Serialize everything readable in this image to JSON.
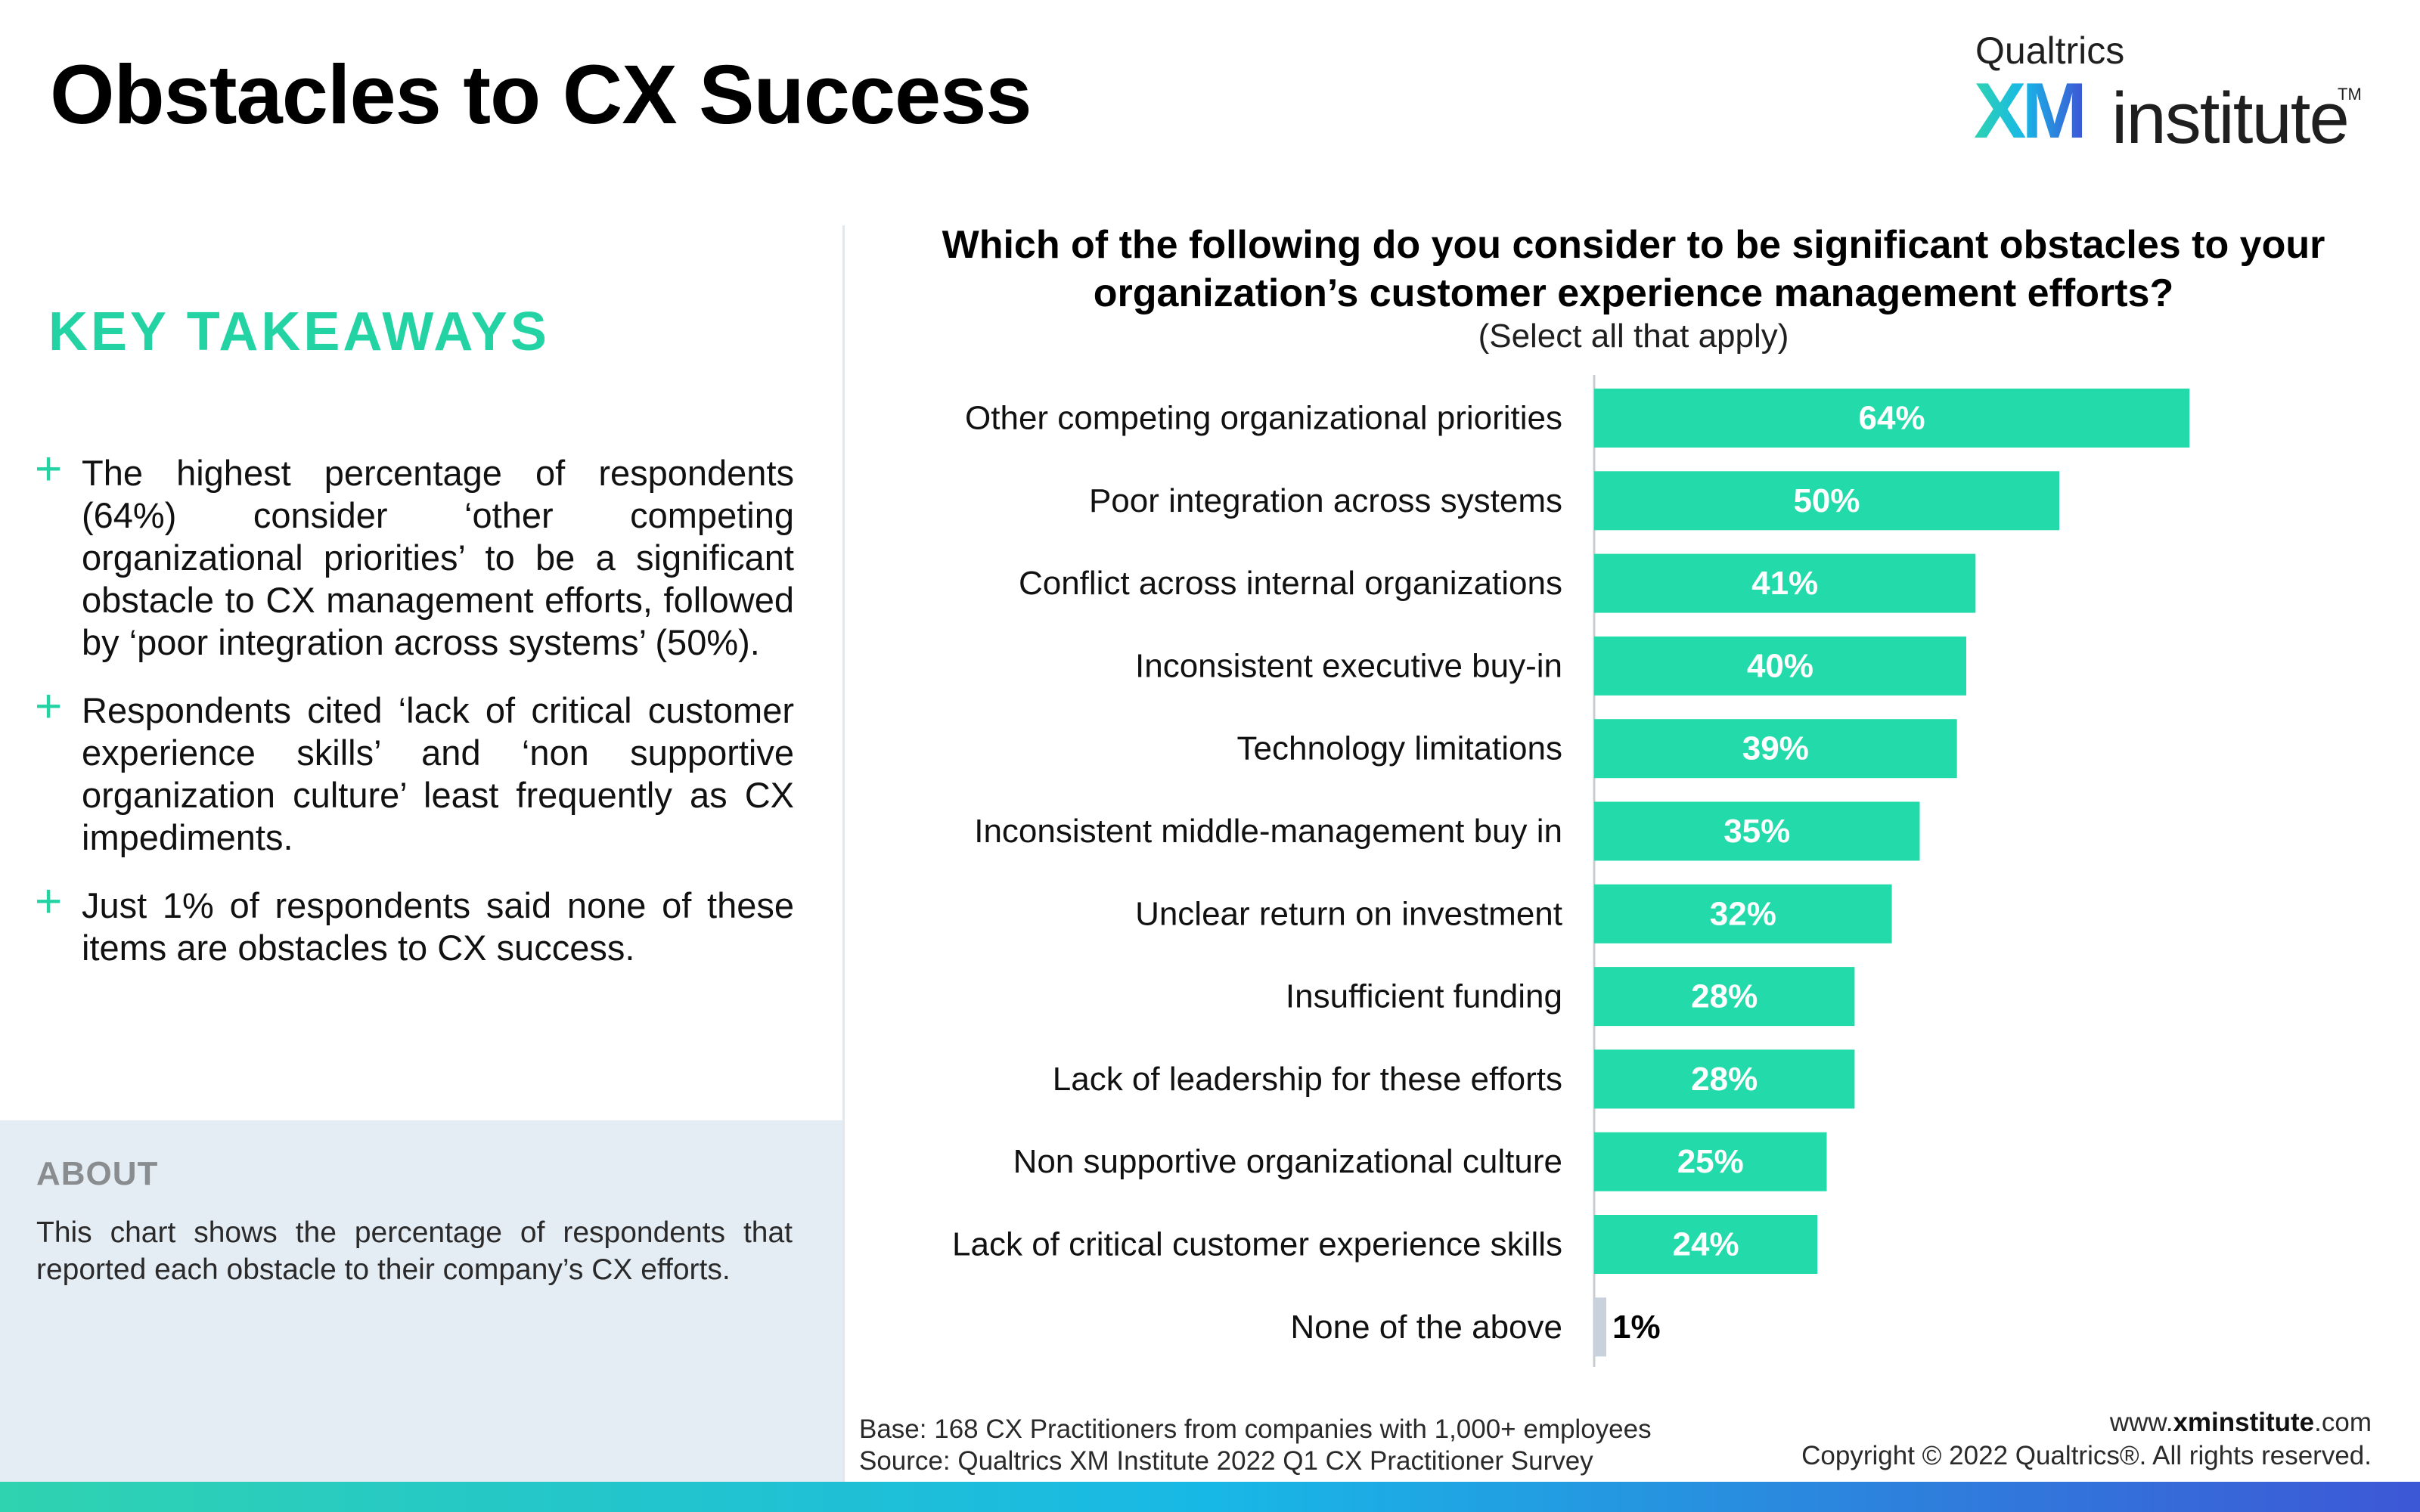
{
  "header": {
    "title": "Obstacles to CX Success",
    "logo": {
      "top_text": "Qualtrics",
      "mark": "XM",
      "word": "institute",
      "tm": "TM",
      "gradient": [
        "#2fd3b0",
        "#18b8e6",
        "#3d57d6"
      ]
    }
  },
  "takeaways": {
    "heading": "KEY TAKEAWAYS",
    "plus": "+",
    "items": [
      "The highest percentage of respondents (64%) consider ‘other competing organizational priorities’ to be a significant obstacle to CX management efforts, followed by ‘poor integration across systems’ (50%).",
      "Respondents cited ‘lack of critical customer experience skills’ and ‘non supportive organization culture’ least frequently as CX impediments.",
      "Just 1% of respondents said none of these items are obstacles to CX success."
    ]
  },
  "about": {
    "heading": "ABOUT",
    "text": "This chart shows the percentage of respondents that reported each obstacle to their company’s CX efforts."
  },
  "chart_data": {
    "type": "bar",
    "orientation": "horizontal",
    "title": "Which of the following do you consider to be significant obstacles to your organization’s customer experience management efforts?",
    "subtitle": "(Select all that apply)",
    "categories": [
      "Other competing organizational priorities",
      "Poor integration across systems",
      "Conflict across internal organizations",
      "Inconsistent executive buy-in",
      "Technology limitations",
      "Inconsistent middle-management buy in",
      "Unclear return on investment",
      "Insufficient funding",
      "Lack of leadership for these efforts",
      "Non supportive organizational culture",
      "Lack of critical customer experience skills",
      "None of the above"
    ],
    "values": [
      64,
      50,
      41,
      40,
      39,
      35,
      32,
      28,
      28,
      25,
      24,
      1
    ],
    "value_labels": [
      "64%",
      "50%",
      "41%",
      "40%",
      "39%",
      "35%",
      "32%",
      "28%",
      "28%",
      "25%",
      "24%",
      "1%"
    ],
    "unit": "%",
    "colors": {
      "bar": "#23dbaa",
      "none_of_the_above": "#c9d2dc",
      "label_on_bar": "#ffffff",
      "label_outside": "#000000"
    },
    "xlim": [
      0,
      100
    ],
    "grid": false,
    "legend": "none"
  },
  "footer": {
    "base": "Base: 168 CX Practitioners from companies with 1,000+ employees",
    "source": "Source: Qualtrics XM Institute 2022 Q1 CX Practitioner Survey",
    "site_prefix": "www.",
    "site_bold": "xminstitute",
    "site_suffix": ".com",
    "copyright": "Copyright © 2022 Qualtrics®. All rights reserved."
  }
}
